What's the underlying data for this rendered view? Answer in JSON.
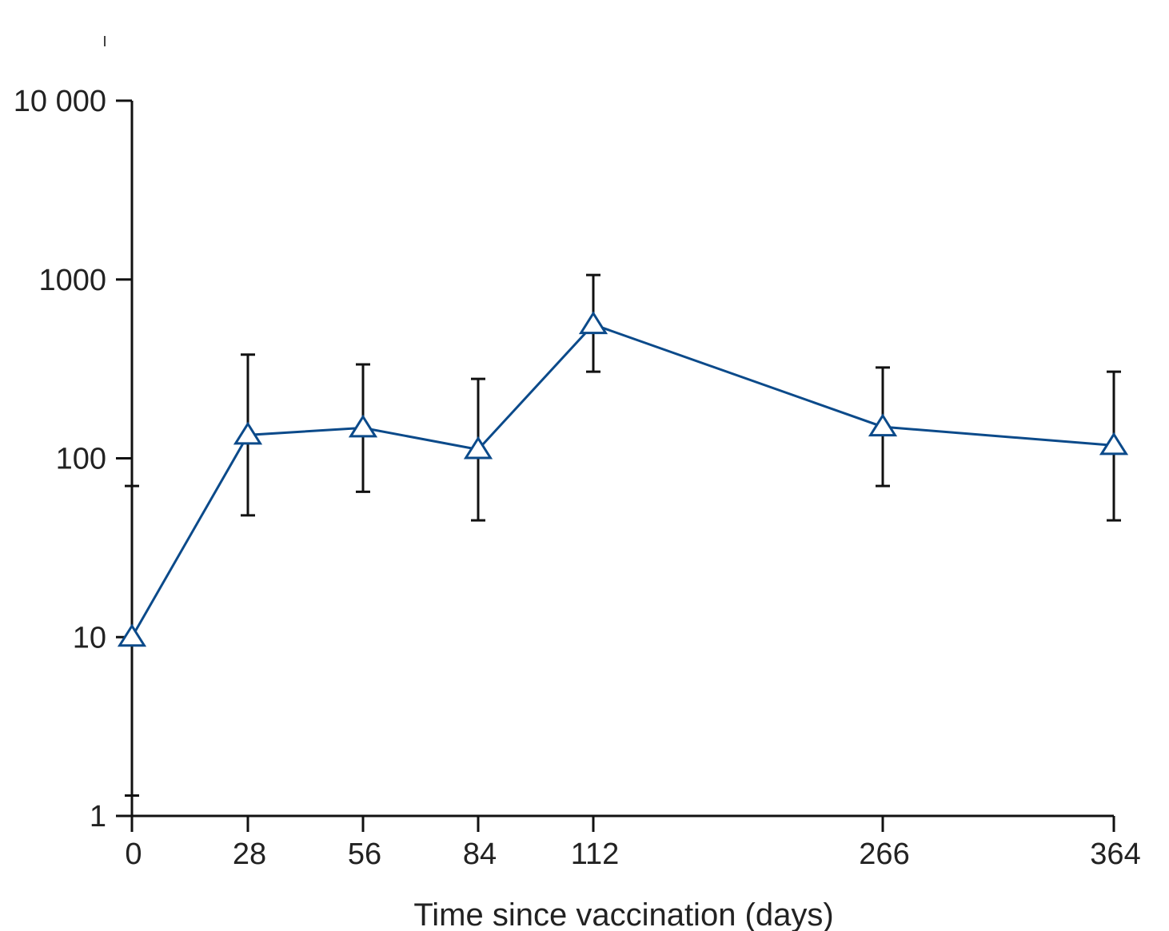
{
  "chart_data": {
    "type": "line",
    "title": "",
    "xlabel": "Time since vaccination (days)",
    "ylabel": "",
    "yscale": "log",
    "ylim": [
      1,
      10000
    ],
    "x_ticks": [
      0,
      28,
      56,
      84,
      112,
      266,
      364
    ],
    "x_tick_labels": [
      "0",
      "28",
      "56",
      "84",
      "112",
      "266",
      "364"
    ],
    "y_ticks": [
      1,
      10,
      100,
      1000,
      10000
    ],
    "y_tick_labels": [
      "1",
      "10",
      "100",
      "1000",
      "10 000"
    ],
    "grid": false,
    "legend": "none",
    "series": [
      {
        "marker": "open-triangle",
        "color": "#0b4a8a",
        "x": [
          0,
          28,
          56,
          84,
          112,
          266,
          364
        ],
        "y": [
          10,
          135,
          148,
          112,
          560,
          150,
          118
        ],
        "error_low": [
          1.3,
          48,
          65,
          45,
          305,
          70,
          45
        ],
        "error_high": [
          70,
          380,
          335,
          278,
          1060,
          322,
          305
        ]
      }
    ]
  }
}
